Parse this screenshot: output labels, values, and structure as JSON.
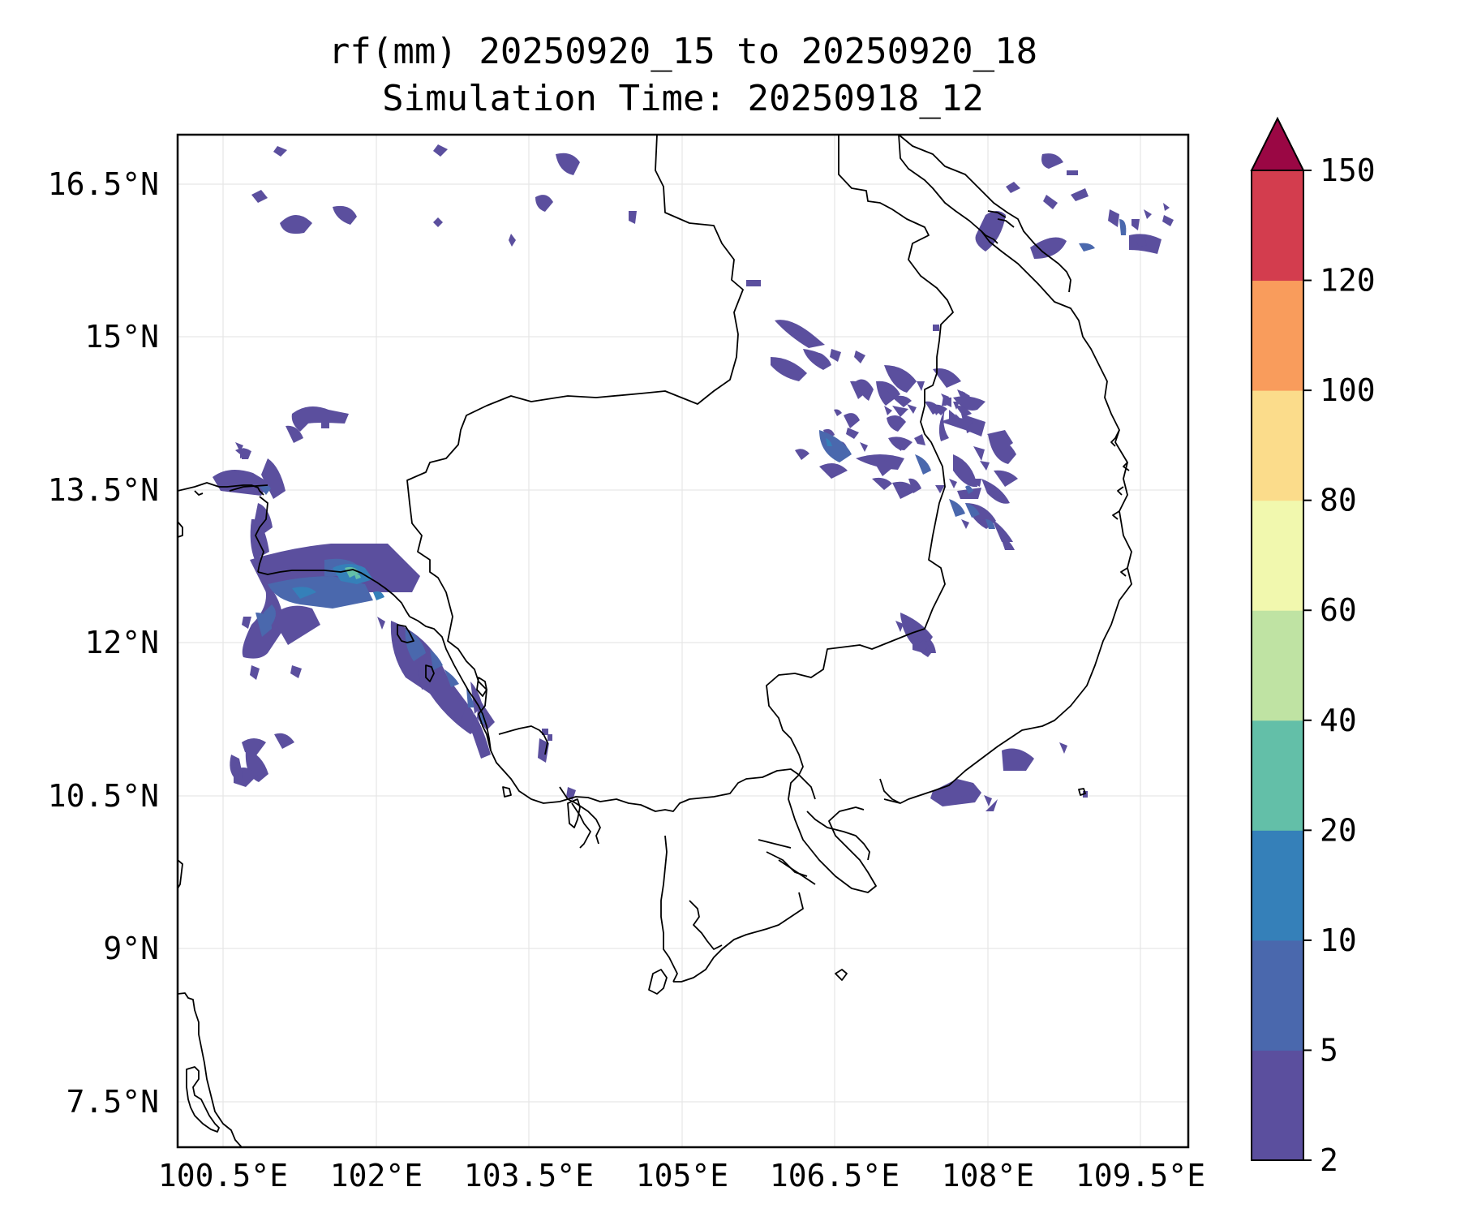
{
  "title": {
    "line1": "rf(mm) 20250920_15 to 20250920_18",
    "line2": "Simulation Time: 20250918_12"
  },
  "map": {
    "lat_ticks": [
      "16.5°N",
      "15°N",
      "13.5°N",
      "12°N",
      "10.5°N",
      "9°N",
      "7.5°N"
    ],
    "lon_ticks": [
      "100.5°E",
      "102°E",
      "103.5°E",
      "105°E",
      "106.5°E",
      "108°E",
      "109.5°E"
    ]
  },
  "colorbar": {
    "ticks": [
      "2",
      "5",
      "10",
      "20",
      "40",
      "60",
      "80",
      "100",
      "120",
      "150"
    ],
    "colors": [
      "#5b4f9e",
      "#4a68ad",
      "#3580b9",
      "#63bfa8",
      "#bfe3a3",
      "#f1f8ae",
      "#fbdc8b",
      "#f99c5c",
      "#d33d4e"
    ],
    "extend_color": "#9a0744"
  }
}
